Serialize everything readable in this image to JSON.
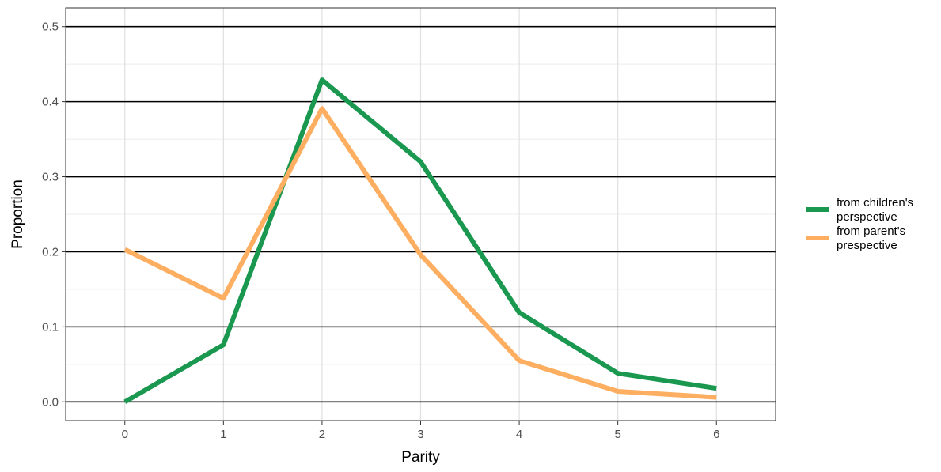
{
  "chart_data": {
    "type": "line",
    "xlabel": "Parity",
    "ylabel": "Proportion",
    "x": [
      0,
      1,
      2,
      3,
      4,
      5,
      6
    ],
    "xlim": [
      -0.6,
      6.6
    ],
    "ylim": [
      -0.025,
      0.525
    ],
    "x_ticks": [
      "0",
      "1",
      "2",
      "3",
      "4",
      "5",
      "6"
    ],
    "y_ticks": [
      "0.0",
      "0.1",
      "0.2",
      "0.3",
      "0.4",
      "0.5"
    ],
    "grid": true,
    "legend_position": "right",
    "series": [
      {
        "name_lines": [
          "from children's",
          "perspective"
        ],
        "color": "#1a9850",
        "values": [
          0.0,
          0.076,
          0.429,
          0.32,
          0.119,
          0.038,
          0.018
        ]
      },
      {
        "name_lines": [
          "from parent's",
          "prespective"
        ],
        "color": "#fdae61",
        "values": [
          0.203,
          0.138,
          0.391,
          0.196,
          0.055,
          0.014,
          0.006
        ]
      }
    ]
  }
}
